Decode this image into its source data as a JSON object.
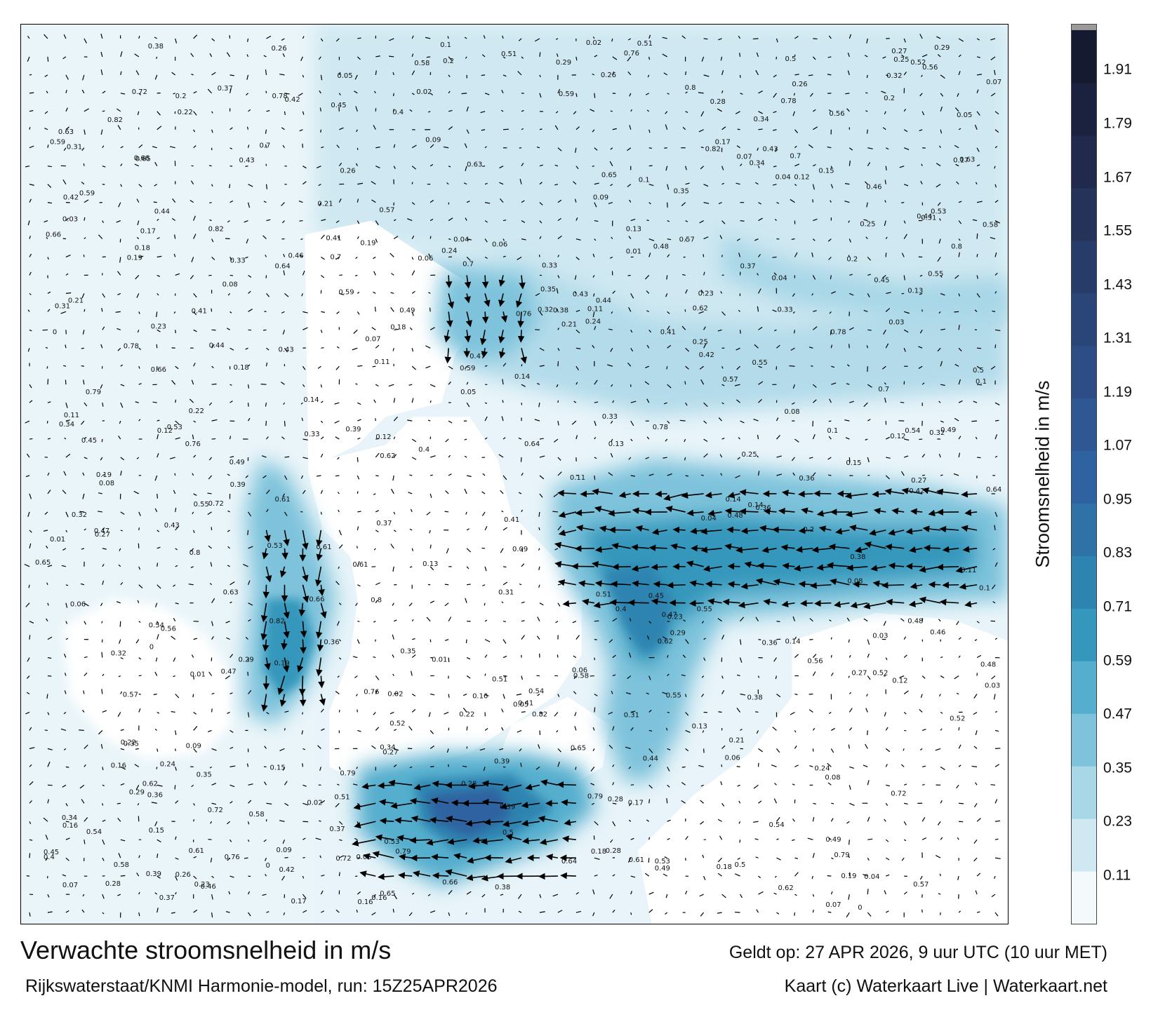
{
  "title": "Verwachte stroomsnelheid in m/s",
  "subtitle": "Rijkswaterstaat/KNMI Harmonie-model, run: 15Z25APR2026",
  "valid_time": "Geldt op: 27 APR 2026, 9 uur UTC (10 uur MET)",
  "credit": "Kaart (c) Waterkaart Live | Waterkaart.net",
  "colorbar": {
    "title": "Stroomsnelheid in m/s",
    "ticks": [
      "1.91",
      "1.79",
      "1.67",
      "1.55",
      "1.43",
      "1.31",
      "1.19",
      "1.07",
      "0.95",
      "0.83",
      "0.71",
      "0.59",
      "0.47",
      "0.35",
      "0.23",
      "0.11"
    ],
    "tick_values": [
      1.91,
      1.79,
      1.67,
      1.55,
      1.43,
      1.31,
      1.19,
      1.07,
      0.95,
      0.83,
      0.71,
      0.59,
      0.47,
      0.35,
      0.23,
      0.11
    ],
    "min": 0,
    "max": 2.0,
    "colors": [
      "#f4fafc",
      "#cfe8f1",
      "#a8d7e7",
      "#7ec3db",
      "#55aecd",
      "#3597bb",
      "#2d84b0",
      "#2f72a8",
      "#2f62a0",
      "#2e5794",
      "#2c4d85",
      "#2a4577",
      "#283c69",
      "#25335b",
      "#212a4d",
      "#1b223f",
      "#151a30"
    ]
  },
  "map_labels": [
    {
      "text": "0.11"
    },
    {
      "text": "0.06"
    },
    {
      "text": "0.12"
    },
    {
      "text": "0.13"
    },
    {
      "text": "0.07"
    },
    {
      "text": "0.08"
    },
    {
      "text": "0.04"
    },
    {
      "text": "0.05"
    },
    {
      "text": "0.09"
    },
    {
      "text": "0.14"
    },
    {
      "text": "0.16"
    },
    {
      "text": "0.1"
    },
    {
      "text": "0.32"
    },
    {
      "text": "0.31"
    },
    {
      "text": "0.34"
    },
    {
      "text": "0.33"
    },
    {
      "text": "0.26"
    },
    {
      "text": "0.27"
    },
    {
      "text": "0.28"
    },
    {
      "text": "0.38"
    },
    {
      "text": "0.36"
    },
    {
      "text": "0.44"
    },
    {
      "text": "0.41"
    },
    {
      "text": "0.42"
    },
    {
      "text": "0.45"
    },
    {
      "text": "0.43"
    },
    {
      "text": "0.39"
    },
    {
      "text": "0.37"
    },
    {
      "text": "0.35"
    },
    {
      "text": "0.29"
    },
    {
      "text": "0.53"
    },
    {
      "text": "0.55"
    },
    {
      "text": "0.57"
    },
    {
      "text": "0.54"
    },
    {
      "text": "0.51"
    },
    {
      "text": "0.49"
    },
    {
      "text": "0.58"
    },
    {
      "text": "0.59"
    },
    {
      "text": "0.61"
    },
    {
      "text": "0.62"
    },
    {
      "text": "0.65"
    },
    {
      "text": "0.66"
    },
    {
      "text": "0.72"
    },
    {
      "text": "0.7"
    },
    {
      "text": "0.76"
    },
    {
      "text": "0.82"
    },
    {
      "text": "0.79"
    },
    {
      "text": "0.78"
    },
    {
      "text": "0.17"
    },
    {
      "text": "0.18"
    },
    {
      "text": "0.19"
    },
    {
      "text": "0.2"
    },
    {
      "text": "0.21"
    },
    {
      "text": "0.22"
    },
    {
      "text": "0.23"
    },
    {
      "text": "0.24"
    },
    {
      "text": "0.25"
    },
    {
      "text": "0.15"
    },
    {
      "text": "0.03"
    },
    {
      "text": "0.02"
    },
    {
      "text": "0.01"
    },
    {
      "text": "0"
    },
    {
      "text": "0.4"
    },
    {
      "text": "0.47"
    },
    {
      "text": "0.46"
    },
    {
      "text": "0.48"
    },
    {
      "text": "0.5"
    },
    {
      "text": "0.52"
    },
    {
      "text": "0.56"
    },
    {
      "text": "0.63"
    },
    {
      "text": "0.64"
    },
    {
      "text": "0.8"
    }
  ]
}
